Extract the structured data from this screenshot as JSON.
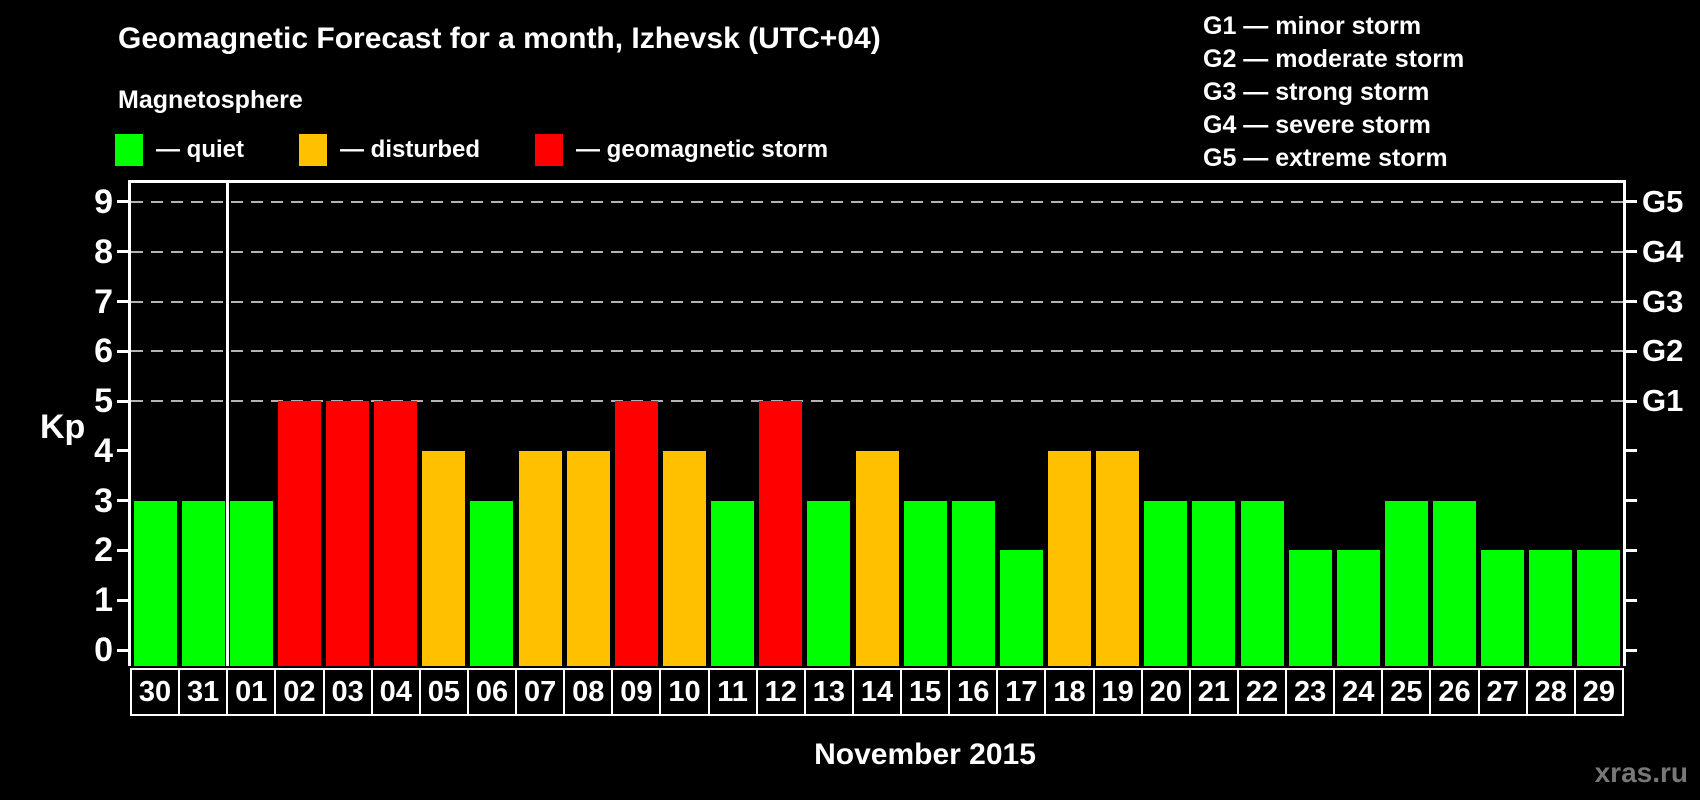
{
  "header": {
    "title": "Geomagnetic Forecast for a month, Izhevsk (UTC+04)",
    "subtitle": "Magnetosphere",
    "legend": [
      {
        "status": "quiet",
        "label": "— quiet",
        "color": "#00ff00"
      },
      {
        "status": "disturbed",
        "label": "— disturbed",
        "color": "#ffc000"
      },
      {
        "status": "storm",
        "label": "— geomagnetic storm",
        "color": "#ff0000"
      }
    ],
    "g_scale_legend": [
      "G1 — minor storm",
      "G2 — moderate storm",
      "G3 — strong storm",
      "G4 — severe storm",
      "G5 — extreme storm"
    ]
  },
  "chart_data": {
    "type": "bar",
    "title": "Geomagnetic Forecast for a month, Izhevsk (UTC+04)",
    "ylabel": "Kp",
    "xlabel": "November 2015",
    "ylim": [
      0,
      9
    ],
    "yticks": [
      0,
      1,
      2,
      3,
      4,
      5,
      6,
      7,
      8,
      9
    ],
    "grid": "dashed horizontal lines at Kp 5-9 only",
    "legend_position": "top-left",
    "gridlines_at": [
      5,
      6,
      7,
      8,
      9
    ],
    "right_axis_labels": [
      {
        "kp": 5,
        "label": "G1"
      },
      {
        "kp": 6,
        "label": "G2"
      },
      {
        "kp": 7,
        "label": "G3"
      },
      {
        "kp": 8,
        "label": "G4"
      },
      {
        "kp": 9,
        "label": "G5"
      }
    ],
    "categories": [
      "30",
      "31",
      "01",
      "02",
      "03",
      "04",
      "05",
      "06",
      "07",
      "08",
      "09",
      "10",
      "11",
      "12",
      "13",
      "14",
      "15",
      "16",
      "17",
      "18",
      "19",
      "20",
      "21",
      "22",
      "23",
      "24",
      "25",
      "26",
      "27",
      "28",
      "29"
    ],
    "values": [
      3,
      3,
      3,
      5,
      5,
      5,
      4,
      3,
      4,
      4,
      5,
      4,
      3,
      5,
      3,
      4,
      3,
      3,
      2,
      4,
      4,
      3,
      3,
      3,
      2,
      2,
      3,
      3,
      2,
      2,
      2
    ],
    "statuses": [
      "quiet",
      "quiet",
      "quiet",
      "storm",
      "storm",
      "storm",
      "disturbed",
      "quiet",
      "disturbed",
      "disturbed",
      "storm",
      "disturbed",
      "quiet",
      "storm",
      "quiet",
      "disturbed",
      "quiet",
      "quiet",
      "quiet",
      "disturbed",
      "disturbed",
      "quiet",
      "quiet",
      "quiet",
      "quiet",
      "quiet",
      "quiet",
      "quiet",
      "quiet",
      "quiet",
      "quiet"
    ],
    "month_boundary_after_index": 1,
    "status_colors": {
      "quiet": "#00ff00",
      "disturbed": "#ffc000",
      "storm": "#ff0000"
    }
  },
  "footer": {
    "caption": "November 2015",
    "watermark": "xras.ru"
  }
}
